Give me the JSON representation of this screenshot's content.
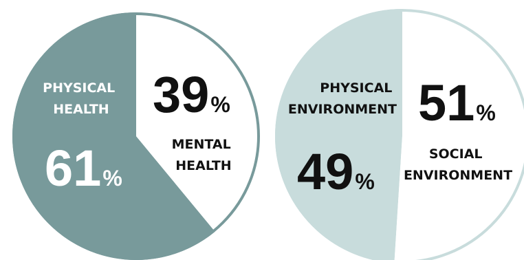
{
  "chart_data": [
    {
      "type": "pie",
      "title": "",
      "slices": [
        {
          "label_lines": [
            "PHYSICAL",
            "HEALTH"
          ],
          "value": 61,
          "display": "61",
          "unit": "%",
          "color": "#789a9b"
        },
        {
          "label_lines": [
            "MENTAL",
            "HEALTH"
          ],
          "value": 39,
          "display": "39",
          "unit": "%",
          "color": "#ffffff"
        }
      ],
      "border_color": "#789a9b"
    },
    {
      "type": "pie",
      "title": "",
      "slices": [
        {
          "label_lines": [
            "PHYSICAL",
            "ENVIRONMENT"
          ],
          "value": 49,
          "display": "49",
          "unit": "%",
          "color": "#c8dcdc"
        },
        {
          "label_lines": [
            "SOCIAL",
            "ENVIRONMENT"
          ],
          "value": 51,
          "display": "51",
          "unit": "%",
          "color": "#ffffff"
        }
      ],
      "border_color": "#c8dcdc"
    }
  ]
}
